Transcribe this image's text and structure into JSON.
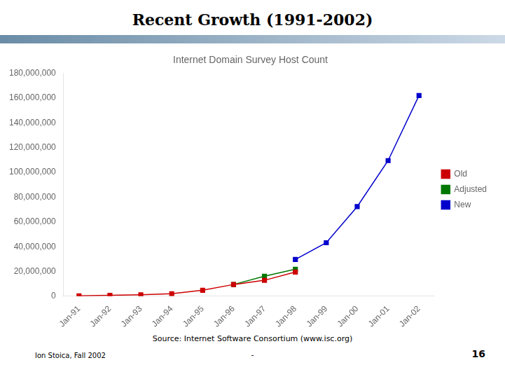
{
  "chart_data": {
    "type": "line",
    "title": "Recent Growth (1991-2002)",
    "subtitle": "Internet Domain Survey Host Count",
    "categories": [
      "Jan-91",
      "Jan-92",
      "Jan-93",
      "Jan-94",
      "Jan-95",
      "Jan-96",
      "Jan-97",
      "Jan-98",
      "Jan-99",
      "Jan-00",
      "Jan-01",
      "Jan-02"
    ],
    "series": [
      {
        "name": "Old",
        "color": "#cc0000",
        "marker": "square",
        "line_style": "solid",
        "values": [
          376000,
          727000,
          1136000,
          2056000,
          4852000,
          9472000,
          12881000,
          19540000,
          null,
          null,
          null,
          null
        ]
      },
      {
        "name": "Adjusted",
        "color": "#007700",
        "marker": "square",
        "line_style": "solid",
        "values": [
          null,
          null,
          null,
          null,
          null,
          9472000,
          16146000,
          21819000,
          null,
          null,
          null,
          null
        ]
      },
      {
        "name": "New",
        "color": "#0000cc",
        "marker": "square",
        "line_style": "solid",
        "values": [
          null,
          null,
          null,
          null,
          null,
          null,
          null,
          29670000,
          43230000,
          72398092,
          109574429,
          162128493
        ]
      }
    ],
    "ylim": [
      0,
      180000000
    ],
    "yticks": [
      0,
      {
        "value": 20000000,
        "label": "20,000,000"
      },
      {
        "value": 40000000,
        "label": "40,000,000"
      },
      {
        "value": 60000000,
        "label": "60,000,000"
      },
      {
        "value": 80000000,
        "label": "80,000,000"
      },
      {
        "value": 100000000,
        "label": "100,000,000"
      },
      {
        "value": 120000000,
        "label": "120,000,000"
      },
      {
        "value": 140000000,
        "label": "140,000,000"
      },
      {
        "value": 160000000,
        "label": "160,000,000"
      },
      {
        "value": 180000000,
        "label": "180,000,000"
      }
    ],
    "grid": false,
    "legend": "right",
    "annotations": [
      "Source: Internet Software Consortium (www.isc.org)",
      "Ion Stoica, Fall 2002",
      "-",
      "16"
    ]
  }
}
